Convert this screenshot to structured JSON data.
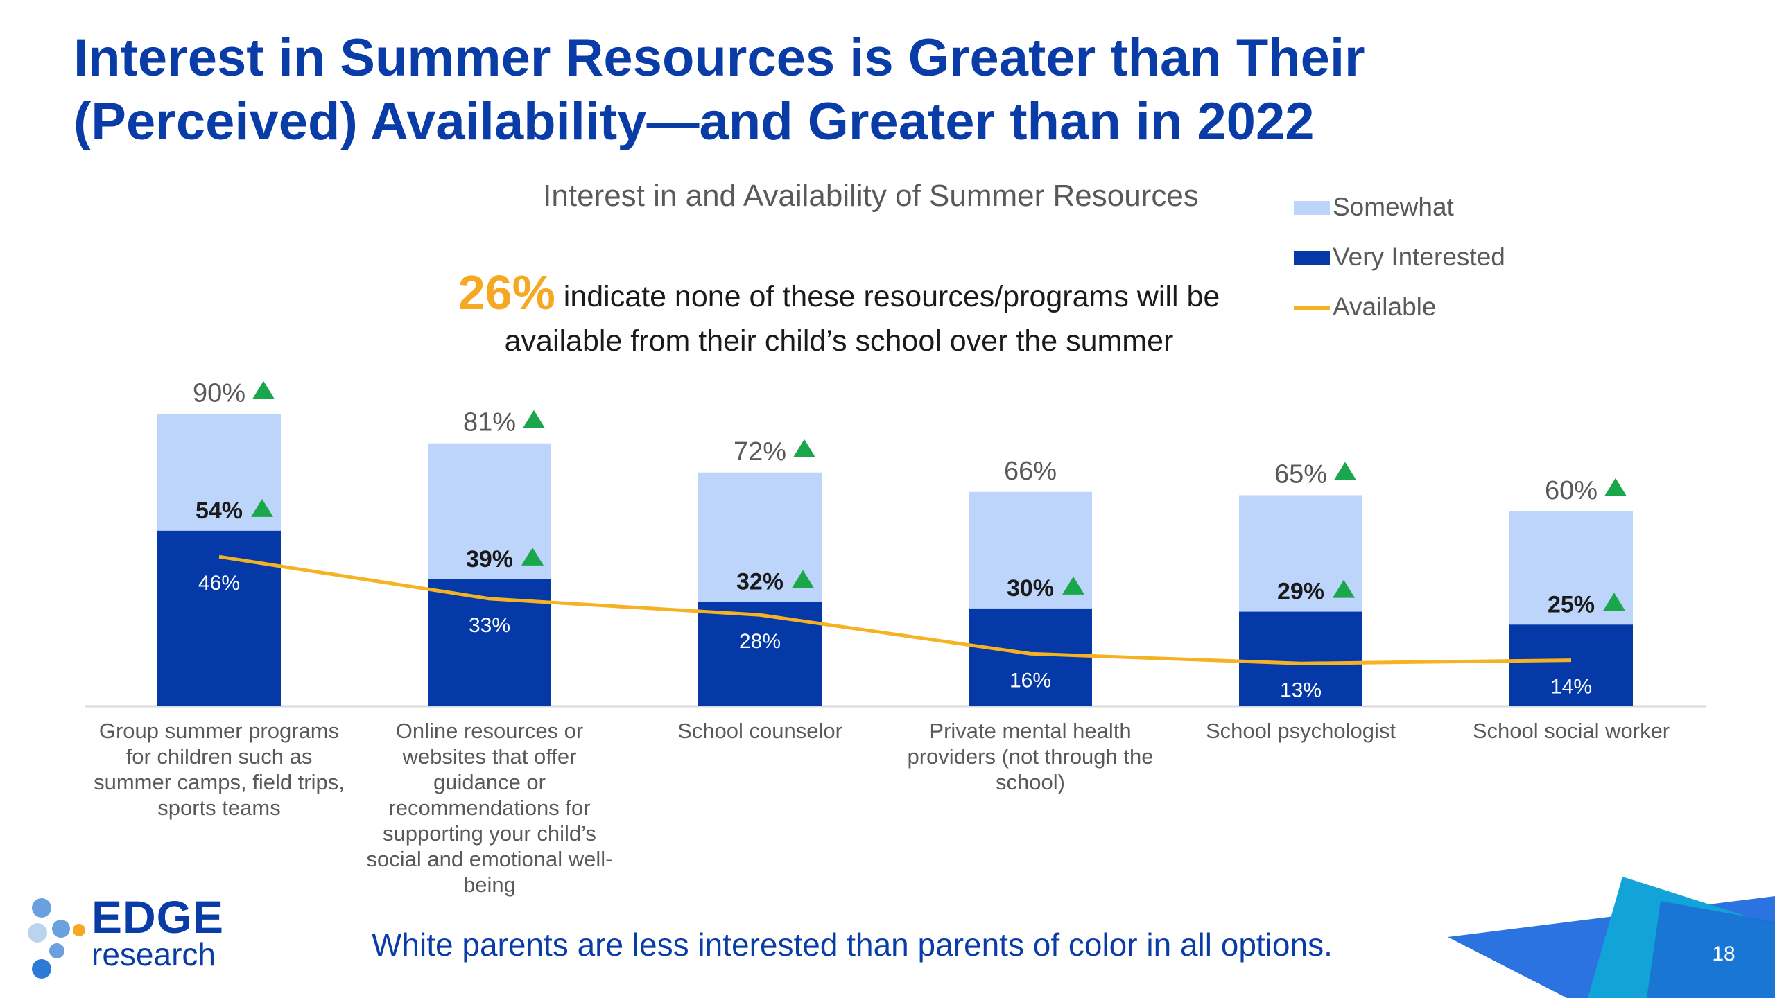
{
  "title": {
    "line1": "Interest in Summer Resources is Greater than Their",
    "line2": "(Perceived) Availability—and Greater than in 2022"
  },
  "callout": {
    "percent": "26%",
    "text_line1": "indicate none of these resources/programs will be",
    "text_line2": "available from their child’s school over the summer"
  },
  "footer": {
    "note": "White parents are less interested than parents of color in all options.",
    "page_number": "18",
    "logo_word": "EDGE",
    "logo_sub": "research"
  },
  "colors": {
    "title": "#0a3ca8",
    "somewhat": "#bdd5fb",
    "very": "#0539a7",
    "available": "#f5b324",
    "increase_marker": "#1aa64a",
    "callout_pct": "#f7a823"
  },
  "chart_data": {
    "type": "bar",
    "stacked": true,
    "title": "Interest in and Availability of Summer Resources",
    "categories": [
      "Group summer programs for children such as summer camps, field trips, sports teams",
      "Online resources or websites that offer guidance or recommendations for supporting your child’s social and emotional well-being",
      "School counselor",
      "Private mental health providers (not through the school)",
      "School psychologist",
      "School social worker"
    ],
    "category_lines": [
      [
        "Group summer programs",
        "for children such as",
        "summer camps, field trips,",
        "sports teams"
      ],
      [
        "Online resources or",
        "websites that offer",
        "guidance or",
        "recommendations for",
        "supporting your child’s",
        "social and emotional well-",
        "being"
      ],
      [
        "School counselor"
      ],
      [
        "Private mental health",
        "providers (not through the",
        "school)"
      ],
      [
        "School psychologist"
      ],
      [
        "School social worker"
      ]
    ],
    "total_interest": [
      90,
      81,
      72,
      66,
      65,
      60
    ],
    "total_labels": [
      "90%",
      "81%",
      "72%",
      "66%",
      "65%",
      "60%"
    ],
    "total_increase": [
      true,
      true,
      true,
      false,
      true,
      true
    ],
    "series": [
      {
        "name": "Very Interested",
        "values": [
          54,
          39,
          32,
          30,
          29,
          25
        ],
        "labels": [
          "54%",
          "39%",
          "32%",
          "30%",
          "29%",
          "25%"
        ],
        "increase": [
          true,
          true,
          true,
          true,
          true,
          true
        ]
      },
      {
        "name": "Somewhat",
        "values": [
          36,
          42,
          40,
          36,
          36,
          35
        ]
      },
      {
        "name": "Available",
        "type": "line",
        "values": [
          46,
          33,
          28,
          16,
          13,
          14
        ],
        "labels": [
          "46%",
          "33%",
          "28%",
          "16%",
          "13%",
          "14%"
        ]
      }
    ],
    "legend": {
      "position": "top-right",
      "entries": [
        "Somewhat",
        "Very Interested",
        "Available"
      ]
    },
    "ylim": [
      0,
      100
    ],
    "grid": false
  }
}
